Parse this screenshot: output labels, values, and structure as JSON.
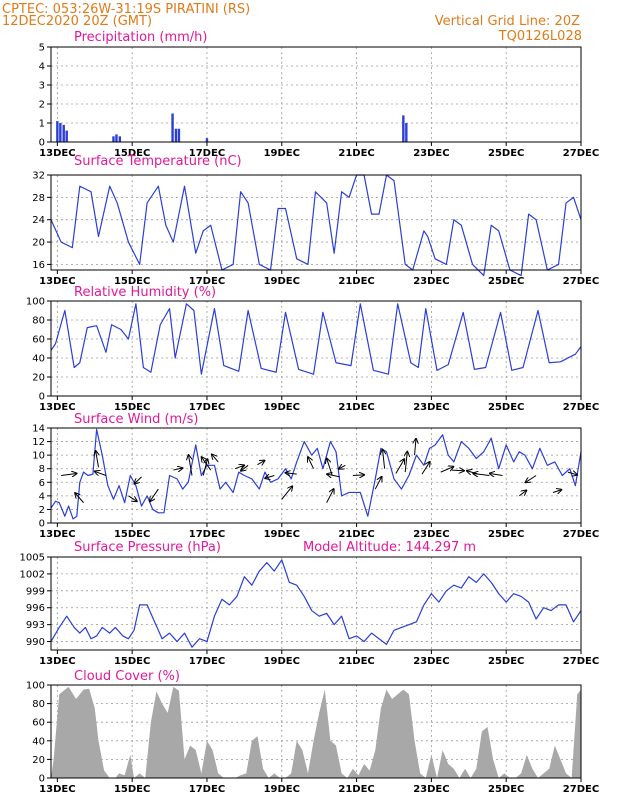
{
  "header": {
    "line1_left": "CPTEC:   053:26W-31:19S   PIRATINI (RS)",
    "line2_left": "12DEC2020 20Z (GMT)",
    "line1_right": "Vertical Grid Line: 20Z",
    "line2_right": "TQ0126L028"
  },
  "colors": {
    "header": "#e07b1a",
    "panel_title": "#e0199a",
    "series_line": "#2b3fd6",
    "precip_bar": "#2b3fd6",
    "cloud_fill": "#a8a8a8",
    "grid": "#9a9a9a",
    "wind_arrow": "#000000"
  },
  "x_axis": {
    "start_day": 12.83,
    "end_day": 27.0,
    "day_ticks": [
      {
        "day": 13,
        "label": "13DEC"
      },
      {
        "day": 15,
        "label": "15DEC"
      },
      {
        "day": 17,
        "label": "17DEC"
      },
      {
        "day": 19,
        "label": "19DEC"
      },
      {
        "day": 21,
        "label": "21DEC"
      },
      {
        "day": 23,
        "label": "23DEC"
      },
      {
        "day": 25,
        "label": "25DEC"
      },
      {
        "day": 27,
        "label": "27DEC"
      }
    ]
  },
  "chart_data": [
    {
      "type": "bar",
      "title": "Precipitation (mm/h)",
      "ylim": [
        0,
        5
      ],
      "yticks": [
        "0",
        "1",
        "2",
        "3",
        "4",
        "5"
      ],
      "grid": true,
      "x": [
        13.0,
        13.08,
        13.17,
        13.25,
        14.5,
        14.58,
        14.67,
        16.08,
        16.17,
        16.25,
        17.0,
        22.25,
        22.33
      ],
      "values": [
        1.1,
        1.0,
        0.9,
        0.6,
        0.3,
        0.4,
        0.3,
        1.5,
        0.7,
        0.7,
        0.2,
        1.4,
        1.0
      ]
    },
    {
      "type": "line",
      "title": "Surface Temperature (nC)",
      "ylim": [
        15,
        32
      ],
      "yticks": [
        "16",
        "20",
        "24",
        "28",
        "32"
      ],
      "grid": true,
      "x": [
        12.83,
        13.1,
        13.4,
        13.6,
        13.9,
        14.1,
        14.4,
        14.6,
        14.9,
        15.2,
        15.4,
        15.7,
        15.9,
        16.1,
        16.4,
        16.7,
        16.9,
        17.1,
        17.4,
        17.7,
        17.9,
        18.1,
        18.4,
        18.7,
        18.9,
        19.1,
        19.4,
        19.7,
        19.9,
        20.2,
        20.4,
        20.6,
        20.8,
        21.0,
        21.2,
        21.4,
        21.6,
        21.8,
        22.0,
        22.3,
        22.5,
        22.8,
        22.9,
        23.1,
        23.4,
        23.6,
        23.8,
        24.1,
        24.4,
        24.6,
        24.8,
        25.1,
        25.4,
        25.6,
        25.8,
        26.1,
        26.4,
        26.6,
        26.8,
        27.0
      ],
      "values": [
        24,
        20,
        19,
        30,
        29,
        21,
        30,
        27,
        20,
        16,
        27,
        30,
        23,
        20,
        30,
        18,
        22,
        23,
        15,
        16,
        29,
        27,
        16,
        15,
        26,
        26,
        17,
        16,
        29,
        27,
        18,
        29,
        28,
        32,
        32,
        25,
        25,
        32,
        31,
        16,
        15,
        22,
        21,
        17,
        16,
        24,
        23,
        16,
        14,
        23,
        22,
        15,
        14,
        25,
        24,
        15,
        16,
        27,
        28,
        24
      ],
      "ylabel": ""
    },
    {
      "type": "line",
      "title": "Relative Humidity (%)",
      "ylim": [
        0,
        100
      ],
      "yticks": [
        "0",
        "20",
        "40",
        "60",
        "80",
        "100"
      ],
      "grid": true,
      "x": [
        12.83,
        12.95,
        13.2,
        13.45,
        13.6,
        13.8,
        14.05,
        14.3,
        14.45,
        14.7,
        14.9,
        15.1,
        15.3,
        15.5,
        15.75,
        16.0,
        16.15,
        16.45,
        16.65,
        16.85,
        17.2,
        17.45,
        17.85,
        18.1,
        18.45,
        18.85,
        19.1,
        19.45,
        19.85,
        20.1,
        20.45,
        20.85,
        21.1,
        21.45,
        21.85,
        22.1,
        22.45,
        22.65,
        22.85,
        23.15,
        23.45,
        23.85,
        24.15,
        24.45,
        24.85,
        25.15,
        25.45,
        25.85,
        26.15,
        26.45,
        26.85,
        27.0
      ],
      "values": [
        48,
        55,
        90,
        30,
        35,
        72,
        74,
        46,
        75,
        70,
        60,
        97,
        30,
        25,
        75,
        92,
        40,
        97,
        90,
        23,
        92,
        32,
        26,
        90,
        29,
        25,
        88,
        28,
        23,
        88,
        35,
        32,
        97,
        27,
        23,
        97,
        35,
        30,
        92,
        27,
        33,
        88,
        28,
        30,
        88,
        27,
        30,
        90,
        35,
        36,
        44,
        52
      ],
      "ylabel": ""
    },
    {
      "type": "line",
      "title": "Surface Wind (m/s)",
      "ylim": [
        0,
        14
      ],
      "yticks": [
        "0",
        "2",
        "4",
        "6",
        "8",
        "10",
        "12",
        "14"
      ],
      "grid": true,
      "x": [
        12.83,
        12.95,
        13.05,
        13.2,
        13.3,
        13.42,
        13.52,
        13.6,
        13.7,
        13.82,
        13.95,
        14.05,
        14.2,
        14.35,
        14.5,
        14.65,
        14.8,
        14.95,
        15.1,
        15.25,
        15.4,
        15.55,
        15.7,
        15.85,
        16.0,
        16.2,
        16.35,
        16.5,
        16.7,
        16.85,
        17.0,
        17.2,
        17.35,
        17.5,
        17.7,
        17.85,
        18.0,
        18.2,
        18.4,
        18.55,
        18.7,
        18.9,
        19.1,
        19.25,
        19.4,
        19.6,
        19.8,
        19.95,
        20.1,
        20.3,
        20.45,
        20.6,
        20.8,
        20.95,
        21.1,
        21.3,
        21.5,
        21.65,
        21.8,
        22.0,
        22.2,
        22.4,
        22.6,
        22.8,
        22.95,
        23.1,
        23.3,
        23.45,
        23.6,
        23.8,
        24.0,
        24.2,
        24.4,
        24.6,
        24.8,
        25.0,
        25.2,
        25.35,
        25.5,
        25.7,
        25.9,
        26.1,
        26.3,
        26.5,
        26.7,
        26.85,
        27.0
      ],
      "values": [
        2.2,
        3.2,
        3.0,
        1.0,
        2.5,
        0.6,
        1.0,
        6.0,
        7.5,
        7.0,
        7.2,
        13.8,
        10.0,
        5.5,
        3.5,
        5.5,
        3.0,
        7.0,
        5.5,
        2.5,
        4.0,
        2.0,
        1.5,
        1.5,
        7.0,
        6.5,
        5.0,
        6.0,
        11.5,
        7.0,
        8.5,
        8.5,
        5.0,
        6.0,
        4.5,
        7.5,
        7.0,
        6.5,
        5.0,
        7.5,
        6.0,
        6.5,
        8.0,
        6.5,
        9.0,
        12.0,
        10.0,
        11.0,
        8.0,
        12.0,
        10.5,
        4.0,
        4.5,
        4.5,
        4.5,
        1.0,
        6.5,
        11.0,
        10.5,
        6.5,
        5.0,
        7.0,
        10.0,
        8.5,
        11.0,
        11.5,
        13.0,
        10.0,
        9.0,
        12.0,
        11.0,
        9.5,
        10.5,
        12.5,
        8.0,
        11.5,
        9.0,
        10.5,
        10.0,
        8.0,
        11.0,
        8.5,
        9.0,
        7.0,
        8.0,
        5.5,
        10.5
      ],
      "arrows": [
        {
          "x": 13.1,
          "y": 7.0,
          "u": 2.2,
          "v": 0.3
        },
        {
          "x": 13.7,
          "y": 3.0,
          "u": -1.2,
          "v": 1.4
        },
        {
          "x": 14.1,
          "y": 8.2,
          "u": -0.4,
          "v": 2.4
        },
        {
          "x": 14.3,
          "y": 7.0,
          "u": -1.6,
          "v": 0.6
        },
        {
          "x": 14.9,
          "y": 4.0,
          "u": 1.2,
          "v": -0.8
        },
        {
          "x": 15.25,
          "y": 6.8,
          "u": -1.0,
          "v": -1.0
        },
        {
          "x": 15.7,
          "y": 5.0,
          "u": -1.2,
          "v": -1.8
        },
        {
          "x": 16.1,
          "y": 7.8,
          "u": 1.3,
          "v": 0.3
        },
        {
          "x": 16.6,
          "y": 7.0,
          "u": -0.5,
          "v": 3.0
        },
        {
          "x": 16.9,
          "y": 7.0,
          "u": 0.6,
          "v": 2.4
        },
        {
          "x": 17.1,
          "y": 7.8,
          "u": -1.3,
          "v": 1.9
        },
        {
          "x": 17.3,
          "y": 9.0,
          "u": -0.9,
          "v": 1.1
        },
        {
          "x": 17.75,
          "y": 8.0,
          "u": 1.3,
          "v": 0.5
        },
        {
          "x": 18.1,
          "y": 8.5,
          "u": -1.0,
          "v": -0.8
        },
        {
          "x": 18.35,
          "y": 8.6,
          "u": 1.0,
          "v": 0.6
        },
        {
          "x": 18.8,
          "y": 7.0,
          "u": -1.3,
          "v": -0.4
        },
        {
          "x": 19.0,
          "y": 3.5,
          "u": 1.5,
          "v": 1.9
        },
        {
          "x": 19.4,
          "y": 7.2,
          "u": -1.6,
          "v": 0.2
        },
        {
          "x": 19.85,
          "y": 8.0,
          "u": -0.8,
          "v": 1.7
        },
        {
          "x": 20.2,
          "y": 3.0,
          "u": 1.0,
          "v": 2.0
        },
        {
          "x": 20.35,
          "y": 7.0,
          "u": -0.8,
          "v": 2.5
        },
        {
          "x": 20.55,
          "y": 6.8,
          "u": -1.8,
          "v": 0.4
        },
        {
          "x": 20.7,
          "y": 8.5,
          "u": -0.9,
          "v": -0.5
        },
        {
          "x": 20.9,
          "y": 7.0,
          "u": 1.6,
          "v": 0.1
        },
        {
          "x": 21.5,
          "y": 5.0,
          "u": 0.9,
          "v": 1.8
        },
        {
          "x": 21.75,
          "y": 8.0,
          "u": -0.3,
          "v": 2.8
        },
        {
          "x": 22.05,
          "y": 7.3,
          "u": 1.2,
          "v": 2.1
        },
        {
          "x": 22.3,
          "y": 7.5,
          "u": 0.3,
          "v": 3.0
        },
        {
          "x": 22.55,
          "y": 10.0,
          "u": 0.2,
          "v": 2.4
        },
        {
          "x": 22.75,
          "y": 7.2,
          "u": 1.1,
          "v": 1.8
        },
        {
          "x": 23.25,
          "y": 7.5,
          "u": 1.8,
          "v": 0.8
        },
        {
          "x": 23.55,
          "y": 7.8,
          "u": 1.7,
          "v": -0.1
        },
        {
          "x": 24.25,
          "y": 7.2,
          "u": -1.6,
          "v": 0.5
        },
        {
          "x": 24.55,
          "y": 7.0,
          "u": -2.3,
          "v": 0.3
        },
        {
          "x": 24.9,
          "y": 7.0,
          "u": -1.8,
          "v": 0.3
        },
        {
          "x": 25.35,
          "y": 4.0,
          "u": 1.0,
          "v": 0.8
        },
        {
          "x": 25.8,
          "y": 7.0,
          "u": -1.5,
          "v": -1.0
        },
        {
          "x": 26.25,
          "y": 4.5,
          "u": 1.2,
          "v": 0.4
        },
        {
          "x": 26.65,
          "y": 7.5,
          "u": 1.3,
          "v": -0.4
        }
      ],
      "ylabel": ""
    },
    {
      "type": "line",
      "title": "Surface Pressure (hPa)",
      "annotation": "Model Altitude: 144.297 m",
      "ylim": [
        988.5,
        1005
      ],
      "yticks": [
        "990",
        "993",
        "996",
        "999",
        "1002",
        "1005"
      ],
      "grid": true,
      "x": [
        12.83,
        13.05,
        13.25,
        13.45,
        13.6,
        13.75,
        13.9,
        14.05,
        14.2,
        14.4,
        14.55,
        14.75,
        14.9,
        15.05,
        15.2,
        15.4,
        15.6,
        15.8,
        16.0,
        16.2,
        16.4,
        16.6,
        16.8,
        17.0,
        17.2,
        17.4,
        17.6,
        17.8,
        18.0,
        18.2,
        18.4,
        18.6,
        18.8,
        19.0,
        19.2,
        19.4,
        19.6,
        19.8,
        20.0,
        20.2,
        20.4,
        20.6,
        20.8,
        21.0,
        21.2,
        21.4,
        21.6,
        21.8,
        22.0,
        22.2,
        22.4,
        22.6,
        22.8,
        23.0,
        23.2,
        23.4,
        23.6,
        23.8,
        24.0,
        24.2,
        24.4,
        24.6,
        24.8,
        25.0,
        25.2,
        25.4,
        25.6,
        25.8,
        26.0,
        26.2,
        26.4,
        26.6,
        26.8,
        27.0
      ],
      "values": [
        990.0,
        992.5,
        994.5,
        992.5,
        991.5,
        992.5,
        990.5,
        991.0,
        992.5,
        991.5,
        992.5,
        991.0,
        990.5,
        992.0,
        996.5,
        996.5,
        993.5,
        990.5,
        991.5,
        990.0,
        991.5,
        989.0,
        990.5,
        990.0,
        994.5,
        997.5,
        996.5,
        998.0,
        1001.5,
        1000.0,
        1002.5,
        1004.0,
        1002.5,
        1004.5,
        1000.5,
        1000.0,
        998.0,
        995.5,
        994.5,
        995.0,
        993.0,
        994.5,
        990.5,
        991.0,
        990.0,
        991.5,
        990.5,
        989.5,
        992.0,
        992.5,
        993.0,
        993.5,
        996.5,
        998.5,
        997.0,
        999.0,
        1000.0,
        999.5,
        1001.5,
        1000.5,
        1002.0,
        1000.5,
        998.5,
        997.0,
        998.5,
        998.0,
        997.0,
        994.0,
        996.0,
        995.5,
        996.5,
        996.5,
        993.5,
        995.5
      ],
      "ylabel": ""
    },
    {
      "type": "area",
      "title": "Cloud Cover (%)",
      "ylim": [
        0,
        100
      ],
      "yticks": [
        "0",
        "20",
        "40",
        "60",
        "80",
        "100"
      ],
      "grid": true,
      "x": [
        12.83,
        12.9,
        13.05,
        13.3,
        13.5,
        13.7,
        13.85,
        14.0,
        14.1,
        14.25,
        14.4,
        14.55,
        14.65,
        14.8,
        14.95,
        15.05,
        15.2,
        15.35,
        15.5,
        15.65,
        15.8,
        15.95,
        16.1,
        16.25,
        16.4,
        16.55,
        16.7,
        16.85,
        17.0,
        17.15,
        17.3,
        17.45,
        17.6,
        17.75,
        17.9,
        18.05,
        18.2,
        18.35,
        18.5,
        18.65,
        18.8,
        18.95,
        19.1,
        19.25,
        19.4,
        19.55,
        19.7,
        19.85,
        20.0,
        20.15,
        20.3,
        20.45,
        20.6,
        20.75,
        20.9,
        21.05,
        21.2,
        21.35,
        21.5,
        21.65,
        21.8,
        21.95,
        22.1,
        22.25,
        22.4,
        22.55,
        22.7,
        22.85,
        23.0,
        23.15,
        23.3,
        23.45,
        23.6,
        23.75,
        23.9,
        24.05,
        24.2,
        24.35,
        24.5,
        24.65,
        24.8,
        24.95,
        25.1,
        25.25,
        25.4,
        25.55,
        25.7,
        25.85,
        26.0,
        26.15,
        26.3,
        26.45,
        26.6,
        26.75,
        26.9,
        27.0
      ],
      "values": [
        0,
        20,
        90,
        98,
        85,
        95,
        96,
        75,
        40,
        8,
        0,
        0,
        5,
        3,
        25,
        0,
        5,
        0,
        60,
        93,
        80,
        70,
        98,
        94,
        20,
        35,
        30,
        5,
        40,
        30,
        5,
        0,
        0,
        0,
        3,
        5,
        40,
        45,
        10,
        0,
        5,
        0,
        0,
        5,
        40,
        30,
        5,
        40,
        70,
        95,
        40,
        35,
        5,
        0,
        10,
        3,
        15,
        8,
        30,
        75,
        95,
        85,
        90,
        95,
        90,
        40,
        5,
        0,
        25,
        0,
        30,
        15,
        10,
        0,
        10,
        0,
        10,
        50,
        55,
        20,
        0,
        5,
        0,
        0,
        5,
        25,
        10,
        0,
        5,
        10,
        35,
        20,
        5,
        0,
        90,
        95
      ],
      "ylabel": ""
    }
  ]
}
